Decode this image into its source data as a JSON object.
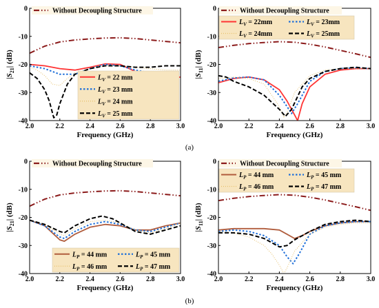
{
  "colors": {
    "without": "#8b1a1a",
    "s1": "#ff3333",
    "s2": "#1e6fd9",
    "s3": "#e6c06a",
    "s4": "#000000",
    "p1": "#b05c3c",
    "legend_bg": "#f7e5bf",
    "legend_bg_alpha": "#fdf6e6"
  },
  "captions": [
    "(a)",
    "(b)"
  ],
  "chart_data": [
    {
      "type": "line",
      "xlabel": "Frequency (GHz)",
      "ylabel": "|S21| (dB)",
      "xlim": [
        2.0,
        3.0
      ],
      "ylim": [
        -40,
        0
      ],
      "xticks": [
        2.0,
        2.2,
        2.4,
        2.6,
        2.8,
        3.0
      ],
      "yticks": [
        0,
        -10,
        -20,
        -30,
        -40
      ],
      "legend_top": {
        "text": "Without Decoupling Structure"
      },
      "legend_main": [
        {
          "pre": "L",
          "sub": "V",
          "post": " = 22 mm"
        },
        {
          "pre": "L",
          "sub": "V",
          "post": " = 23 mm"
        },
        {
          "pre": "L",
          "sub": "V",
          "post": " = 24 mm"
        },
        {
          "pre": "L",
          "sub": "V",
          "post": " = 25 mm"
        }
      ],
      "series": [
        {
          "x": [
            2.0,
            2.1,
            2.2,
            2.3,
            2.4,
            2.5,
            2.6,
            2.7,
            2.8,
            2.9,
            3.0
          ],
          "y": [
            -16.0,
            -13.5,
            -12.0,
            -11.3,
            -10.9,
            -10.6,
            -10.5,
            -10.8,
            -11.3,
            -11.8,
            -12.3
          ]
        },
        {
          "x": [
            2.0,
            2.1,
            2.2,
            2.3,
            2.4,
            2.5,
            2.6,
            2.7,
            2.8,
            2.85,
            2.9,
            3.0
          ],
          "y": [
            -20.0,
            -20.5,
            -21.5,
            -22.0,
            -21.0,
            -19.8,
            -20.0,
            -22.5,
            -25.0,
            -25.5,
            -25.2,
            -24.5
          ]
        },
        {
          "x": [
            2.0,
            2.1,
            2.2,
            2.3,
            2.4,
            2.5,
            2.6,
            2.7,
            2.8,
            2.9,
            3.0
          ],
          "y": [
            -20.5,
            -21.5,
            -23.5,
            -23.5,
            -21.5,
            -20.0,
            -20.5,
            -22.0,
            -23.0,
            -23.5,
            -23.0
          ]
        },
        {
          "x": [
            2.0,
            2.05,
            2.1,
            2.15,
            2.2,
            2.25,
            2.3,
            2.4,
            2.5,
            2.6,
            2.7,
            2.8,
            2.9,
            3.0
          ],
          "y": [
            -21.0,
            -22.0,
            -24.0,
            -27.0,
            -27.5,
            -25.0,
            -23.0,
            -21.5,
            -20.5,
            -20.5,
            -21.0,
            -21.5,
            -22.0,
            -22.0
          ]
        },
        {
          "x": [
            2.0,
            2.05,
            2.1,
            2.13,
            2.16,
            2.18,
            2.2,
            2.25,
            2.3,
            2.4,
            2.5,
            2.6,
            2.7,
            2.8,
            2.9,
            3.0
          ],
          "y": [
            -23.0,
            -25.0,
            -29.0,
            -33.0,
            -39.0,
            -38.0,
            -34.0,
            -27.0,
            -23.5,
            -21.5,
            -20.5,
            -20.5,
            -21.0,
            -21.0,
            -20.5,
            -20.5
          ]
        }
      ]
    },
    {
      "type": "line",
      "xlabel": "Frequency (GHz)",
      "ylabel": "|S11| (dB)",
      "xlim": [
        2.0,
        3.0
      ],
      "ylim": [
        -40,
        0
      ],
      "xticks": [
        2.0,
        2.2,
        2.4,
        2.6,
        2.8,
        3.0
      ],
      "yticks": [
        0,
        -10,
        -20,
        -30,
        -40
      ],
      "legend_top": {
        "text": "Without Decoupling Structure"
      },
      "legend_main": [
        {
          "pre": "L",
          "sub": "V",
          "post": " = 22mm"
        },
        {
          "pre": "L",
          "sub": "V",
          "post": " = 23mm"
        },
        {
          "pre": "L",
          "sub": "V",
          "post": " = 24mm"
        },
        {
          "pre": "L",
          "sub": "V",
          "post": " = 25mm"
        }
      ],
      "series": [
        {
          "x": [
            2.0,
            2.1,
            2.2,
            2.3,
            2.4,
            2.5,
            2.6,
            2.7,
            2.8,
            2.9,
            3.0
          ],
          "y": [
            -14.0,
            -13.2,
            -12.6,
            -12.2,
            -11.9,
            -12.1,
            -12.8,
            -13.8,
            -15.0,
            -16.2,
            -17.5
          ]
        },
        {
          "x": [
            2.0,
            2.1,
            2.2,
            2.3,
            2.4,
            2.45,
            2.5,
            2.52,
            2.55,
            2.6,
            2.7,
            2.8,
            2.9,
            3.0
          ],
          "y": [
            -26.5,
            -25.0,
            -24.5,
            -25.5,
            -29.0,
            -33.0,
            -38.0,
            -40.0,
            -34.0,
            -28.0,
            -23.5,
            -22.0,
            -21.5,
            -21.5
          ]
        },
        {
          "x": [
            2.0,
            2.1,
            2.2,
            2.3,
            2.4,
            2.45,
            2.48,
            2.52,
            2.6,
            2.7,
            2.8,
            2.9,
            3.0
          ],
          "y": [
            -26.0,
            -24.8,
            -24.5,
            -25.5,
            -31.0,
            -35.0,
            -37.5,
            -34.0,
            -26.0,
            -22.5,
            -21.5,
            -21.2,
            -21.5
          ]
        },
        {
          "x": [
            2.0,
            2.1,
            2.2,
            2.3,
            2.4,
            2.43,
            2.46,
            2.5,
            2.6,
            2.7,
            2.8,
            2.9,
            3.0
          ],
          "y": [
            -25.0,
            -24.5,
            -25.0,
            -27.0,
            -35.0,
            -39.0,
            -36.0,
            -30.0,
            -24.0,
            -22.0,
            -21.5,
            -21.5,
            -21.5
          ]
        },
        {
          "x": [
            2.0,
            2.05,
            2.1,
            2.2,
            2.3,
            2.4,
            2.44,
            2.48,
            2.55,
            2.6,
            2.7,
            2.8,
            2.9,
            3.0
          ],
          "y": [
            -24.0,
            -24.5,
            -26.0,
            -28.0,
            -31.0,
            -36.0,
            -38.5,
            -36.0,
            -28.0,
            -25.0,
            -22.5,
            -21.5,
            -21.0,
            -21.5
          ]
        }
      ]
    },
    {
      "type": "line",
      "xlabel": "Frequency (GHz)",
      "ylabel": "|S21| (dB)",
      "xlim": [
        2.0,
        3.0
      ],
      "ylim": [
        -40,
        0
      ],
      "xticks": [
        2.0,
        2.2,
        2.4,
        2.6,
        2.8,
        3.0
      ],
      "yticks": [
        0,
        -10,
        -20,
        -30,
        -40
      ],
      "legend_top": {
        "text": "Without Decoupling Structure"
      },
      "legend_main": [
        {
          "pre": "L",
          "sub": "P",
          "post": " = 44 mm"
        },
        {
          "pre": "L",
          "sub": "P",
          "post": " = 45 mm"
        },
        {
          "pre": "L",
          "sub": "P",
          "post": " = 46 mm"
        },
        {
          "pre": "L",
          "sub": "P",
          "post": " = 47 mm"
        }
      ],
      "series": [
        {
          "x": [
            2.0,
            2.1,
            2.2,
            2.3,
            2.4,
            2.5,
            2.6,
            2.7,
            2.8,
            2.9,
            3.0
          ],
          "y": [
            -16.0,
            -13.5,
            -12.0,
            -11.3,
            -10.9,
            -10.6,
            -10.5,
            -10.8,
            -11.3,
            -11.8,
            -12.3
          ]
        },
        {
          "x": [
            2.0,
            2.1,
            2.2,
            2.23,
            2.3,
            2.4,
            2.5,
            2.6,
            2.7,
            2.8,
            2.9,
            3.0
          ],
          "y": [
            -21.0,
            -23.0,
            -28.0,
            -28.5,
            -26.0,
            -23.5,
            -22.5,
            -23.0,
            -24.5,
            -24.5,
            -23.0,
            -22.0
          ]
        },
        {
          "x": [
            2.0,
            2.1,
            2.2,
            2.23,
            2.3,
            2.4,
            2.5,
            2.6,
            2.7,
            2.8,
            2.9,
            3.0
          ],
          "y": [
            -21.0,
            -23.0,
            -27.0,
            -27.5,
            -25.0,
            -22.5,
            -21.5,
            -22.5,
            -24.5,
            -25.0,
            -23.5,
            -22.0
          ]
        },
        {
          "x": [
            2.0,
            2.1,
            2.2,
            2.23,
            2.3,
            2.4,
            2.5,
            2.6,
            2.7,
            2.8,
            2.9,
            3.0
          ],
          "y": [
            -21.0,
            -22.5,
            -26.0,
            -26.5,
            -24.0,
            -21.5,
            -21.0,
            -22.0,
            -24.5,
            -25.5,
            -24.0,
            -22.0
          ]
        },
        {
          "x": [
            2.0,
            2.1,
            2.2,
            2.23,
            2.3,
            2.4,
            2.48,
            2.55,
            2.6,
            2.7,
            2.8,
            2.9,
            3.0
          ],
          "y": [
            -21.0,
            -22.5,
            -25.0,
            -25.5,
            -23.0,
            -20.5,
            -19.5,
            -20.5,
            -22.0,
            -25.0,
            -26.0,
            -24.5,
            -23.0
          ]
        }
      ]
    },
    {
      "type": "line",
      "xlabel": "Frequency (GHz)",
      "ylabel": "|S11| (dB)",
      "xlim": [
        2.0,
        3.0
      ],
      "ylim": [
        -40,
        0
      ],
      "xticks": [
        2.0,
        2.2,
        2.4,
        2.6,
        2.8,
        3.0
      ],
      "yticks": [
        0,
        -10,
        -20,
        -30,
        -40
      ],
      "legend_top": {
        "text": "Without Decoupling Structure"
      },
      "legend_main": [
        {
          "pre": "L",
          "sub": "P",
          "post": " = 44 mm"
        },
        {
          "pre": "L",
          "sub": "P",
          "post": " = 45 mm"
        },
        {
          "pre": "L",
          "sub": "P",
          "post": " = 46 mm"
        },
        {
          "pre": "L",
          "sub": "P",
          "post": " = 47 mm"
        }
      ],
      "series": [
        {
          "x": [
            2.0,
            2.1,
            2.2,
            2.3,
            2.4,
            2.5,
            2.6,
            2.7,
            2.8,
            2.9,
            3.0
          ],
          "y": [
            -14.0,
            -13.2,
            -12.6,
            -12.2,
            -11.9,
            -12.1,
            -12.8,
            -13.8,
            -15.0,
            -16.2,
            -17.5
          ]
        },
        {
          "x": [
            2.0,
            2.1,
            2.2,
            2.3,
            2.4,
            2.45,
            2.5,
            2.55,
            2.6,
            2.7,
            2.8,
            2.9,
            3.0
          ],
          "y": [
            -24.5,
            -24.0,
            -24.0,
            -24.0,
            -24.5,
            -26.0,
            -27.5,
            -26.5,
            -25.0,
            -23.0,
            -22.0,
            -21.5,
            -21.5
          ]
        },
        {
          "x": [
            2.0,
            2.1,
            2.2,
            2.3,
            2.4,
            2.45,
            2.49,
            2.53,
            2.6,
            2.7,
            2.8,
            2.9,
            3.0
          ],
          "y": [
            -25.0,
            -24.5,
            -25.0,
            -26.5,
            -30.0,
            -34.0,
            -36.5,
            -33.0,
            -26.0,
            -23.0,
            -22.0,
            -21.5,
            -21.5
          ]
        },
        {
          "x": [
            2.0,
            2.1,
            2.2,
            2.3,
            2.35,
            2.4,
            2.43,
            2.45,
            2.5,
            2.6,
            2.7,
            2.8,
            2.9,
            3.0
          ],
          "y": [
            -25.0,
            -25.5,
            -27.0,
            -30.0,
            -33.0,
            -37.0,
            -40.0,
            -38.0,
            -32.0,
            -26.0,
            -23.5,
            -22.5,
            -22.0,
            -22.0
          ]
        },
        {
          "x": [
            2.0,
            2.1,
            2.2,
            2.3,
            2.35,
            2.4,
            2.45,
            2.5,
            2.6,
            2.7,
            2.8,
            2.9,
            3.0
          ],
          "y": [
            -25.5,
            -25.5,
            -26.0,
            -27.5,
            -29.0,
            -30.5,
            -30.0,
            -28.0,
            -25.0,
            -22.5,
            -21.5,
            -21.0,
            -21.5
          ]
        }
      ]
    }
  ]
}
